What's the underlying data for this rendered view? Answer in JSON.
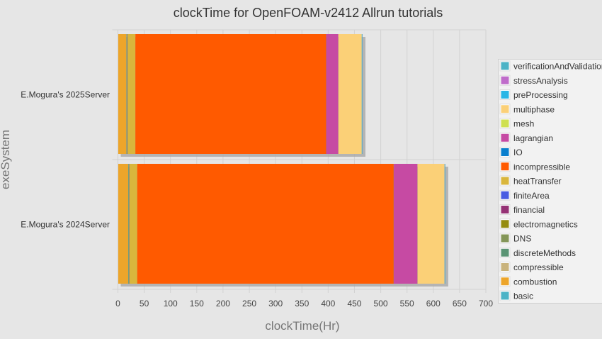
{
  "chart_data": {
    "type": "bar",
    "orientation": "horizontal",
    "stacked": true,
    "title": "clockTime for OpenFOAM-v2412 Allrun tutorials",
    "xlabel": "clockTime(Hr)",
    "ylabel": "exeSystem",
    "xlim": [
      0,
      700
    ],
    "xticks": [
      0,
      50,
      100,
      150,
      200,
      250,
      300,
      350,
      400,
      450,
      500,
      550,
      600,
      650,
      700
    ],
    "grid": true,
    "legend_position": "right",
    "categories": [
      "E.Mogura's 2025Server",
      "E.Mogura's 2024Server"
    ],
    "series": [
      {
        "name": "basic",
        "color": "#4cb3c6",
        "values": [
          0.5,
          0.5
        ]
      },
      {
        "name": "combustion",
        "color": "#eda52a",
        "values": [
          15.5,
          19
        ]
      },
      {
        "name": "compressible",
        "color": "#c9b37c",
        "values": [
          0.3,
          0.3
        ]
      },
      {
        "name": "discreteMethods",
        "color": "#5a9474",
        "values": [
          1,
          1
        ]
      },
      {
        "name": "DNS",
        "color": "#849658",
        "values": [
          0.3,
          0.3
        ]
      },
      {
        "name": "electromagnetics",
        "color": "#958c10",
        "values": [
          0.2,
          0.2
        ]
      },
      {
        "name": "financial",
        "color": "#953275",
        "values": [
          0.1,
          0.1
        ]
      },
      {
        "name": "finiteArea",
        "color": "#4a5de2",
        "values": [
          0.3,
          0.3
        ]
      },
      {
        "name": "heatTransfer",
        "color": "#d9b63c",
        "values": [
          15,
          15
        ]
      },
      {
        "name": "incompressible",
        "color": "#ff5a00",
        "values": [
          363,
          488
        ]
      },
      {
        "name": "IO",
        "color": "#0a7fce",
        "values": [
          0.2,
          0.2
        ]
      },
      {
        "name": "lagrangian",
        "color": "#c64aa3",
        "values": [
          23,
          45
        ]
      },
      {
        "name": "mesh",
        "color": "#cfe04f",
        "values": [
          0.5,
          0.5
        ]
      },
      {
        "name": "multiphase",
        "color": "#fbd077",
        "values": [
          44,
          51
        ]
      },
      {
        "name": "preProcessing",
        "color": "#29b6e6",
        "values": [
          0.3,
          0.3
        ]
      },
      {
        "name": "stressAnalysis",
        "color": "#bf6cca",
        "values": [
          0.3,
          0.3
        ]
      },
      {
        "name": "verificationAndValidation",
        "color": "#4cb3c6",
        "values": [
          1,
          1
        ]
      }
    ]
  }
}
